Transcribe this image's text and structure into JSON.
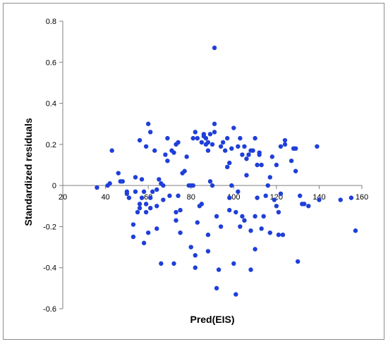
{
  "chart_data": {
    "type": "scatter",
    "xlabel": "Pred(EIS)",
    "ylabel": "Standardized residuals",
    "xlim": [
      20,
      160
    ],
    "ylim": [
      -0.6,
      0.8
    ],
    "xticks": [
      20,
      40,
      60,
      80,
      100,
      120,
      140,
      160
    ],
    "yticks": [
      -0.6,
      -0.4,
      -0.2,
      0,
      0.2,
      0.4,
      0.6,
      0.8
    ],
    "grid": false,
    "legend": "none",
    "marker_color": "#1f3fd8",
    "points": [
      [
        36,
        -0.01
      ],
      [
        41,
        0.0
      ],
      [
        42,
        0.01
      ],
      [
        43,
        0.17
      ],
      [
        46,
        0.06
      ],
      [
        47,
        0.02
      ],
      [
        48,
        0.02
      ],
      [
        50,
        -0.03
      ],
      [
        50,
        -0.04
      ],
      [
        51,
        -0.06
      ],
      [
        53,
        -0.19
      ],
      [
        53,
        -0.25
      ],
      [
        54,
        0.04
      ],
      [
        54,
        -0.03
      ],
      [
        55,
        -0.13
      ],
      [
        56,
        0.22
      ],
      [
        56,
        -0.09
      ],
      [
        56,
        -0.11
      ],
      [
        57,
        0.03
      ],
      [
        57,
        -0.06
      ],
      [
        58,
        -0.28
      ],
      [
        58,
        -0.03
      ],
      [
        59,
        0.19
      ],
      [
        59,
        -0.09
      ],
      [
        59,
        -0.13
      ],
      [
        60,
        0.3
      ],
      [
        60,
        -0.23
      ],
      [
        61,
        0.26
      ],
      [
        61,
        -0.06
      ],
      [
        61,
        -0.11
      ],
      [
        62,
        -0.03
      ],
      [
        63,
        0.17
      ],
      [
        64,
        -0.02
      ],
      [
        64,
        -0.21
      ],
      [
        64,
        -0.1
      ],
      [
        65,
        0.03
      ],
      [
        66,
        0.01
      ],
      [
        66,
        -0.38
      ],
      [
        67,
        -0.07
      ],
      [
        67,
        0.0
      ],
      [
        68,
        0.15
      ],
      [
        69,
        0.23
      ],
      [
        69,
        0.12
      ],
      [
        70,
        -0.05
      ],
      [
        71,
        0.17
      ],
      [
        72,
        0.16
      ],
      [
        72,
        -0.38
      ],
      [
        73,
        0.2
      ],
      [
        73,
        -0.13
      ],
      [
        73,
        -0.17
      ],
      [
        74,
        0.21
      ],
      [
        74,
        -0.05
      ],
      [
        75,
        -0.12
      ],
      [
        75,
        -0.23
      ],
      [
        76,
        0.06
      ],
      [
        77,
        0.07
      ],
      [
        78,
        0.14
      ],
      [
        79,
        0.0
      ],
      [
        80,
        0.0
      ],
      [
        80,
        -0.3
      ],
      [
        81,
        0.23
      ],
      [
        81,
        0.0
      ],
      [
        82,
        0.26
      ],
      [
        82,
        -0.34
      ],
      [
        82,
        -0.4
      ],
      [
        83,
        0.23
      ],
      [
        83,
        -0.18
      ],
      [
        84,
        -0.1
      ],
      [
        85,
        -0.09
      ],
      [
        85,
        0.21
      ],
      [
        86,
        0.24
      ],
      [
        86,
        0.25
      ],
      [
        87,
        0.2
      ],
      [
        87,
        0.23
      ],
      [
        88,
        0.17
      ],
      [
        88,
        0.21
      ],
      [
        88,
        -0.24
      ],
      [
        88,
        -0.32
      ],
      [
        89,
        0.25
      ],
      [
        89,
        0.02
      ],
      [
        90,
        0.2
      ],
      [
        90,
        0.0
      ],
      [
        91,
        0.3
      ],
      [
        91,
        0.26
      ],
      [
        91,
        0.67
      ],
      [
        92,
        -0.15
      ],
      [
        92,
        -0.5
      ],
      [
        93,
        -0.41
      ],
      [
        94,
        -0.2
      ],
      [
        94,
        0.19
      ],
      [
        95,
        0.21
      ],
      [
        96,
        0.17
      ],
      [
        97,
        0.09
      ],
      [
        97,
        0.23
      ],
      [
        98,
        0.11
      ],
      [
        98,
        -0.06
      ],
      [
        98,
        -0.12
      ],
      [
        99,
        0.0
      ],
      [
        99,
        0.18
      ],
      [
        100,
        -0.38
      ],
      [
        100,
        0.28
      ],
      [
        101,
        -0.53
      ],
      [
        101,
        -0.13
      ],
      [
        102,
        0.19
      ],
      [
        102,
        -0.03
      ],
      [
        103,
        0.23
      ],
      [
        103,
        -0.2
      ],
      [
        104,
        0.15
      ],
      [
        104,
        -0.15
      ],
      [
        105,
        0.19
      ],
      [
        105,
        -0.17
      ],
      [
        106,
        0.05
      ],
      [
        106,
        0.13
      ],
      [
        107,
        0.15
      ],
      [
        108,
        0.17
      ],
      [
        108,
        -0.22
      ],
      [
        108,
        -0.41
      ],
      [
        109,
        0.17
      ],
      [
        110,
        0.23
      ],
      [
        110,
        -0.31
      ],
      [
        110,
        -0.15
      ],
      [
        111,
        0.1
      ],
      [
        111,
        -0.06
      ],
      [
        112,
        0.15
      ],
      [
        112,
        0.16
      ],
      [
        113,
        0.1
      ],
      [
        113,
        -0.21
      ],
      [
        114,
        -0.15
      ],
      [
        115,
        -0.05
      ],
      [
        116,
        0.0
      ],
      [
        117,
        0.04
      ],
      [
        117,
        -0.23
      ],
      [
        118,
        0.14
      ],
      [
        119,
        -0.07
      ],
      [
        120,
        0.1
      ],
      [
        120,
        -0.1
      ],
      [
        121,
        -0.13
      ],
      [
        121,
        -0.24
      ],
      [
        122,
        -0.04
      ],
      [
        122,
        0.19
      ],
      [
        123,
        -0.24
      ],
      [
        124,
        0.2
      ],
      [
        124,
        0.22
      ],
      [
        127,
        0.12
      ],
      [
        128,
        0.18
      ],
      [
        129,
        0.18
      ],
      [
        129,
        0.07
      ],
      [
        130,
        -0.37
      ],
      [
        131,
        -0.05
      ],
      [
        132,
        -0.09
      ],
      [
        133,
        -0.09
      ],
      [
        135,
        -0.1
      ],
      [
        139,
        0.19
      ],
      [
        140,
        -0.07
      ],
      [
        150,
        -0.07
      ],
      [
        155,
        -0.06
      ],
      [
        157,
        -0.22
      ]
    ]
  }
}
